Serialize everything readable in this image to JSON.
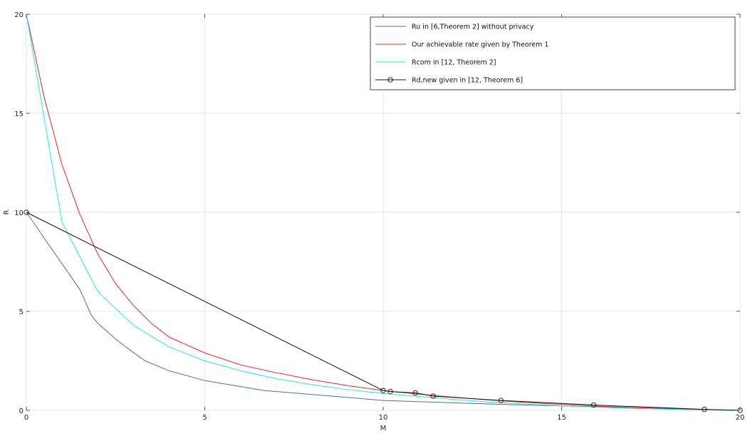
{
  "chart_data": {
    "type": "line",
    "title": "",
    "xlabel": "M",
    "ylabel": "R",
    "xlim": [
      0,
      20
    ],
    "ylim": [
      0,
      20
    ],
    "xticks": [
      "0",
      "5",
      "10",
      "15",
      "20"
    ],
    "yticks": [
      "0",
      "5",
      "10",
      "15",
      "20"
    ],
    "grid": true,
    "legend_position": "top-right",
    "series": [
      {
        "name": "Ru in [6,Theorem 2] without privacy",
        "color": "#4a6fa5",
        "marker": "none",
        "points": [
          [
            0,
            10
          ],
          [
            0.5,
            8.7
          ],
          [
            1,
            7.4
          ],
          [
            1.5,
            6.1
          ],
          [
            1.82,
            4.8
          ],
          [
            2,
            4.4
          ],
          [
            2.5,
            3.6
          ],
          [
            2.86,
            3.1
          ],
          [
            3.33,
            2.5
          ],
          [
            4,
            2.0
          ],
          [
            5,
            1.5
          ],
          [
            6.67,
            1.0
          ],
          [
            10,
            0.5
          ],
          [
            13.33,
            0.3
          ],
          [
            20,
            0
          ]
        ]
      },
      {
        "name": "Our achievable rate given by Theorem 1",
        "color": "#e8231f",
        "marker": "none",
        "points": [
          [
            0,
            20
          ],
          [
            0.5,
            15.8
          ],
          [
            1,
            12.4
          ],
          [
            1.5,
            9.9
          ],
          [
            2,
            7.9
          ],
          [
            2.5,
            6.4
          ],
          [
            3,
            5.3
          ],
          [
            3.5,
            4.4
          ],
          [
            4,
            3.7
          ],
          [
            5,
            2.9
          ],
          [
            6,
            2.3
          ],
          [
            7,
            1.9
          ],
          [
            8,
            1.55
          ],
          [
            9,
            1.25
          ],
          [
            10,
            1.0
          ],
          [
            11,
            0.82
          ],
          [
            12,
            0.66
          ],
          [
            13,
            0.52
          ],
          [
            14,
            0.4
          ],
          [
            15,
            0.3
          ],
          [
            16,
            0.21
          ],
          [
            17,
            0.14
          ],
          [
            18,
            0.08
          ],
          [
            19,
            0.03
          ],
          [
            20,
            0
          ]
        ]
      },
      {
        "name": "Rcom in [12, Theorem 2]",
        "color": "#22e6e6",
        "marker": "none",
        "points": [
          [
            0,
            20
          ],
          [
            1,
            9.5
          ],
          [
            2,
            6.0
          ],
          [
            3,
            4.3
          ],
          [
            4,
            3.2
          ],
          [
            5,
            2.5
          ],
          [
            6,
            2.0
          ],
          [
            7,
            1.6
          ],
          [
            8,
            1.3
          ],
          [
            9,
            1.05
          ],
          [
            10,
            0.85
          ],
          [
            11,
            0.7
          ],
          [
            12,
            0.55
          ],
          [
            13,
            0.42
          ],
          [
            14,
            0.32
          ],
          [
            15,
            0.23
          ],
          [
            16,
            0.16
          ],
          [
            17,
            0.1
          ],
          [
            18,
            0.06
          ],
          [
            19,
            0.02
          ],
          [
            20,
            0
          ]
        ]
      },
      {
        "name": "Rd,new given in [12, Theorem 6]",
        "color": "#111111",
        "marker": "circle",
        "points": [
          [
            0,
            10
          ],
          [
            10,
            1.0
          ],
          [
            10.2,
            0.95
          ],
          [
            10.9,
            0.88
          ],
          [
            11.4,
            0.72
          ],
          [
            13.3,
            0.5
          ],
          [
            15.9,
            0.27
          ],
          [
            19,
            0.05
          ],
          [
            20,
            0
          ]
        ]
      }
    ]
  }
}
